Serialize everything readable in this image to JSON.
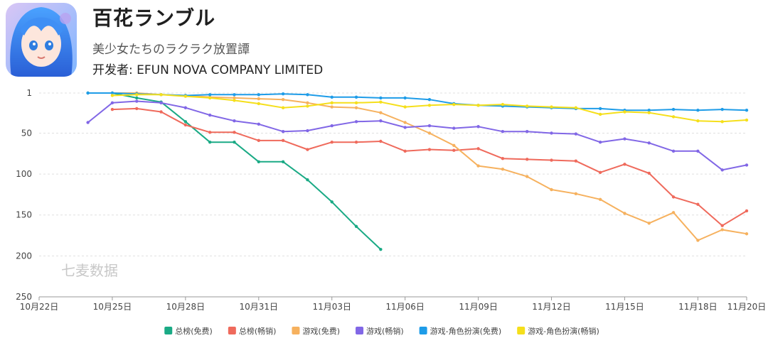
{
  "app": {
    "title": "百花ランブル",
    "subtitle": "美少女たちのラクラク放置譚",
    "developer": "开发者: EFUN NOVA COMPANY LIMITED"
  },
  "watermark": "七麦数据",
  "chart_data": {
    "type": "line",
    "y_reversed": true,
    "ylim": [
      1,
      250
    ],
    "y_ticks": [
      1,
      50,
      100,
      150,
      200,
      250
    ],
    "x_ticks": [
      "10月22日",
      "10月25日",
      "10月28日",
      "10月31日",
      "11月03日",
      "11月06日",
      "11月09日",
      "11月12日",
      "11月15日",
      "11月18日",
      "11月20日"
    ],
    "x_tick_positions": [
      0,
      3,
      6,
      9,
      12,
      15,
      18,
      21,
      24,
      27,
      29
    ],
    "xlim": [
      0,
      29
    ],
    "grid": true,
    "legend_position": "bottom",
    "series": [
      {
        "name": "总榜(免费)",
        "color": "#1aaa85",
        "x": [
          2,
          3,
          4,
          5,
          6,
          7,
          8,
          9,
          10,
          11,
          12,
          13,
          14
        ],
        "values": [
          1,
          1,
          7,
          12,
          36,
          61,
          61,
          85,
          85,
          107,
          134,
          164,
          192
        ]
      },
      {
        "name": "总榜(畅销)",
        "color": "#ef6a5c",
        "x": [
          3,
          4,
          5,
          6,
          7,
          8,
          9,
          10,
          11,
          12,
          13,
          14,
          15,
          16,
          17,
          18,
          19,
          20,
          21,
          22,
          23,
          24,
          25,
          26,
          27,
          28,
          29
        ],
        "values": [
          21,
          20,
          24,
          40,
          49,
          49,
          59,
          59,
          70,
          61,
          61,
          60,
          72,
          70,
          71,
          69,
          81,
          82,
          83,
          84,
          98,
          88,
          99,
          128,
          137,
          163,
          145
        ]
      },
      {
        "name": "游戏(免费)",
        "color": "#f6b15e",
        "x": [
          3,
          4,
          5,
          6,
          7,
          8,
          9,
          10,
          11,
          12,
          13,
          14,
          15,
          16,
          17,
          18,
          19,
          20,
          21,
          22,
          23,
          24,
          25,
          26,
          27,
          28,
          29
        ],
        "values": [
          1,
          1,
          3,
          4,
          6,
          7,
          8,
          9,
          13,
          18,
          19,
          25,
          37,
          50,
          65,
          90,
          94,
          103,
          119,
          124,
          131,
          148,
          160,
          147,
          181,
          168,
          173
        ]
      },
      {
        "name": "游戏(畅销)",
        "color": "#8167e6",
        "x": [
          2,
          3,
          4,
          5,
          6,
          7,
          8,
          9,
          10,
          11,
          12,
          13,
          14,
          15,
          16,
          17,
          18,
          19,
          20,
          21,
          22,
          23,
          24,
          25,
          26,
          27,
          28,
          29
        ],
        "values": [
          37,
          13,
          11,
          13,
          19,
          28,
          35,
          39,
          48,
          47,
          41,
          36,
          35,
          43,
          41,
          44,
          42,
          48,
          48,
          50,
          51,
          61,
          57,
          62,
          72,
          72,
          95,
          89
        ]
      },
      {
        "name": "游戏-角色扮演(免费)",
        "color": "#1e9ce8",
        "x": [
          2,
          3,
          4,
          5,
          6,
          7,
          8,
          9,
          10,
          11,
          12,
          13,
          14,
          15,
          16,
          17,
          18,
          19,
          20,
          21,
          22,
          23,
          24,
          25,
          26,
          27,
          28,
          29
        ],
        "values": [
          1,
          1,
          2,
          3,
          4,
          3,
          3,
          3,
          2,
          3,
          6,
          6,
          7,
          7,
          9,
          14,
          16,
          17,
          18,
          19,
          20,
          20,
          22,
          22,
          21,
          22,
          21,
          22
        ]
      },
      {
        "name": "游戏-角色扮演(畅销)",
        "color": "#f5df1b",
        "x": [
          3,
          4,
          5,
          6,
          7,
          8,
          9,
          10,
          11,
          12,
          13,
          14,
          15,
          16,
          17,
          18,
          19,
          20,
          21,
          22,
          23,
          24,
          25,
          26,
          27,
          28,
          29
        ],
        "values": [
          4,
          3,
          3,
          5,
          7,
          10,
          14,
          19,
          17,
          13,
          13,
          12,
          18,
          16,
          15,
          16,
          15,
          17,
          18,
          19,
          27,
          24,
          25,
          30,
          35,
          36,
          34
        ]
      }
    ]
  }
}
